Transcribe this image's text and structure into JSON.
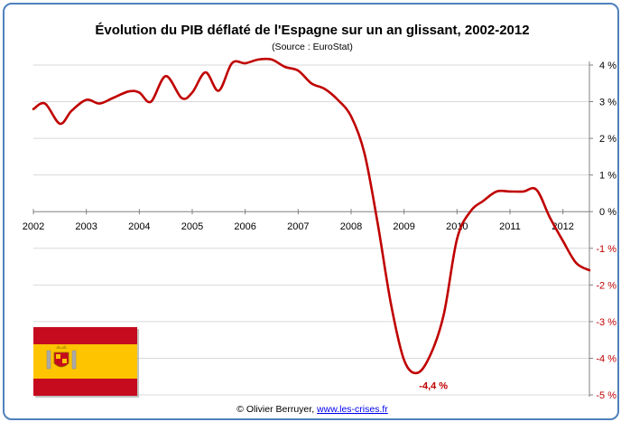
{
  "chart_data": {
    "type": "line",
    "title": "Évolution du PIB déflaté de l'Espagne sur un an glissant, 2002-2012",
    "subtitle": "(Source : EuroStat)",
    "xlabel": "",
    "ylabel": "",
    "xlim": [
      2002.0,
      2012.5
    ],
    "ylim": [
      -5,
      4
    ],
    "x_ticks": [
      "2002",
      "2003",
      "2004",
      "2005",
      "2006",
      "2007",
      "2008",
      "2009",
      "2010",
      "2011",
      "2012"
    ],
    "y_ticks": [
      "4 %",
      "3 %",
      "2 %",
      "1 %",
      "0 %",
      "-1 %",
      "-2 %",
      "-3 %",
      "-4 %",
      "-5 %"
    ],
    "y_tick_values": [
      4,
      3,
      2,
      1,
      0,
      -1,
      -2,
      -3,
      -4,
      -5
    ],
    "grid": true,
    "axis_position": "right",
    "series": [
      {
        "color": "#c00000",
        "points": [
          [
            2002.0,
            2.8
          ],
          [
            2002.22,
            2.95
          ],
          [
            2002.5,
            2.4
          ],
          [
            2002.72,
            2.75
          ],
          [
            2003.0,
            3.05
          ],
          [
            2003.25,
            2.95
          ],
          [
            2003.5,
            3.1
          ],
          [
            2003.8,
            3.28
          ],
          [
            2004.0,
            3.25
          ],
          [
            2004.22,
            3.0
          ],
          [
            2004.5,
            3.7
          ],
          [
            2004.8,
            3.1
          ],
          [
            2005.0,
            3.25
          ],
          [
            2005.25,
            3.8
          ],
          [
            2005.5,
            3.3
          ],
          [
            2005.75,
            4.05
          ],
          [
            2006.0,
            4.05
          ],
          [
            2006.25,
            4.15
          ],
          [
            2006.5,
            4.15
          ],
          [
            2006.75,
            3.95
          ],
          [
            2007.0,
            3.85
          ],
          [
            2007.25,
            3.5
          ],
          [
            2007.5,
            3.35
          ],
          [
            2007.75,
            3.05
          ],
          [
            2008.0,
            2.6
          ],
          [
            2008.25,
            1.6
          ],
          [
            2008.5,
            -0.3
          ],
          [
            2008.75,
            -2.5
          ],
          [
            2009.0,
            -4.05
          ],
          [
            2009.25,
            -4.4
          ],
          [
            2009.5,
            -3.9
          ],
          [
            2009.75,
            -2.8
          ],
          [
            2010.0,
            -0.75
          ],
          [
            2010.25,
            0.0
          ],
          [
            2010.5,
            0.3
          ],
          [
            2010.75,
            0.55
          ],
          [
            2011.0,
            0.55
          ],
          [
            2011.25,
            0.55
          ],
          [
            2011.5,
            0.6
          ],
          [
            2011.75,
            -0.15
          ],
          [
            2012.0,
            -0.8
          ],
          [
            2012.25,
            -1.4
          ],
          [
            2012.5,
            -1.6
          ]
        ]
      }
    ],
    "annotations": [
      {
        "text": "-4,4 %",
        "x": 2009.35,
        "y": -4.4
      }
    ]
  },
  "flag": {
    "country": "Spain",
    "colors": {
      "red": "#c60b1e",
      "yellow": "#ffc400"
    }
  },
  "footer": {
    "prefix": "© Olivier Berruyer, ",
    "link_text": "www.les-crises.fr"
  }
}
